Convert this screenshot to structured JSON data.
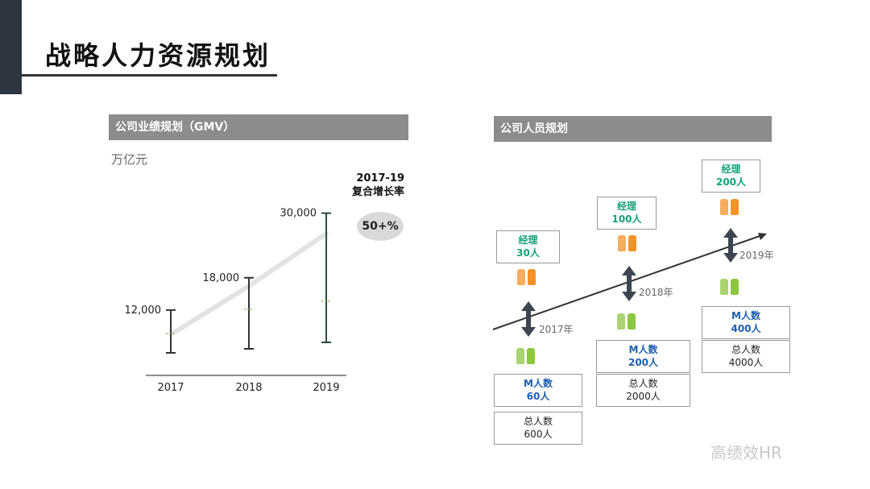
{
  "page": {
    "title": "战略人力资源规划"
  },
  "left_panel": {
    "header": "公司业绩规划（GMV）",
    "unit": "万亿元",
    "cagr_line1": "2017-19",
    "cagr_line2": "复合增长率",
    "cagr_value": "50+%"
  },
  "right_panel": {
    "header": "公司人员规划",
    "years": [
      {
        "label": "2017年",
        "manager_title": "经理",
        "manager_count": "30人",
        "staff_title": "M人数",
        "staff_count": "60人",
        "total_title": "总人数",
        "total_count": "600人"
      },
      {
        "label": "2018年",
        "manager_title": "经理",
        "manager_count": "100人",
        "staff_title": "M人数",
        "staff_count": "200人",
        "total_title": "总人数",
        "total_count": "2000人"
      },
      {
        "label": "2019年",
        "manager_title": "经理",
        "manager_count": "200人",
        "staff_title": "M人数",
        "staff_count": "400人",
        "total_title": "总人数",
        "total_count": "4000人"
      }
    ],
    "colors": {
      "manager": "#13a37a",
      "staff": "#1f5fae",
      "manager_icon": "#f39227",
      "staff_icon": "#8dc63f"
    },
    "icons": {
      "manager": "manager-people-icon",
      "staff": "staff-people-icon",
      "arrow": "double-arrow-icon"
    }
  },
  "chart_data": {
    "type": "range",
    "categories": [
      "2017",
      "2018",
      "2019"
    ],
    "top_labels": [
      "12,000",
      "18,000",
      "30,000"
    ],
    "values": [
      12000,
      18000,
      30000
    ]
  },
  "watermark": "高绩效HR"
}
